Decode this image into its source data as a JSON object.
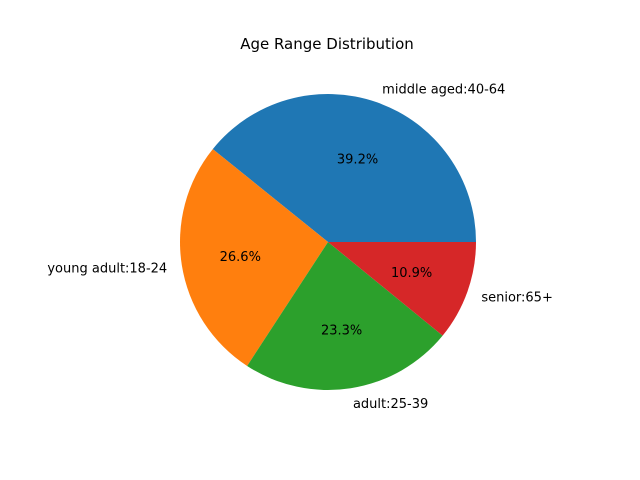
{
  "chart_data": {
    "type": "pie",
    "title": "Age Range Distribution",
    "slices": [
      {
        "label": "middle aged:40-64",
        "value": 39.2,
        "pct_label": "39.2%",
        "color": "#1f77b4"
      },
      {
        "label": "young adult:18-24",
        "value": 26.6,
        "pct_label": "26.6%",
        "color": "#ff7f0e"
      },
      {
        "label": "adult:25-39",
        "value": 23.3,
        "pct_label": "23.3%",
        "color": "#2ca02c"
      },
      {
        "label": "senior:65+",
        "value": 10.9,
        "pct_label": "10.9%",
        "color": "#d62728"
      }
    ],
    "start_angle_deg": 0,
    "direction": "counterclockwise"
  }
}
